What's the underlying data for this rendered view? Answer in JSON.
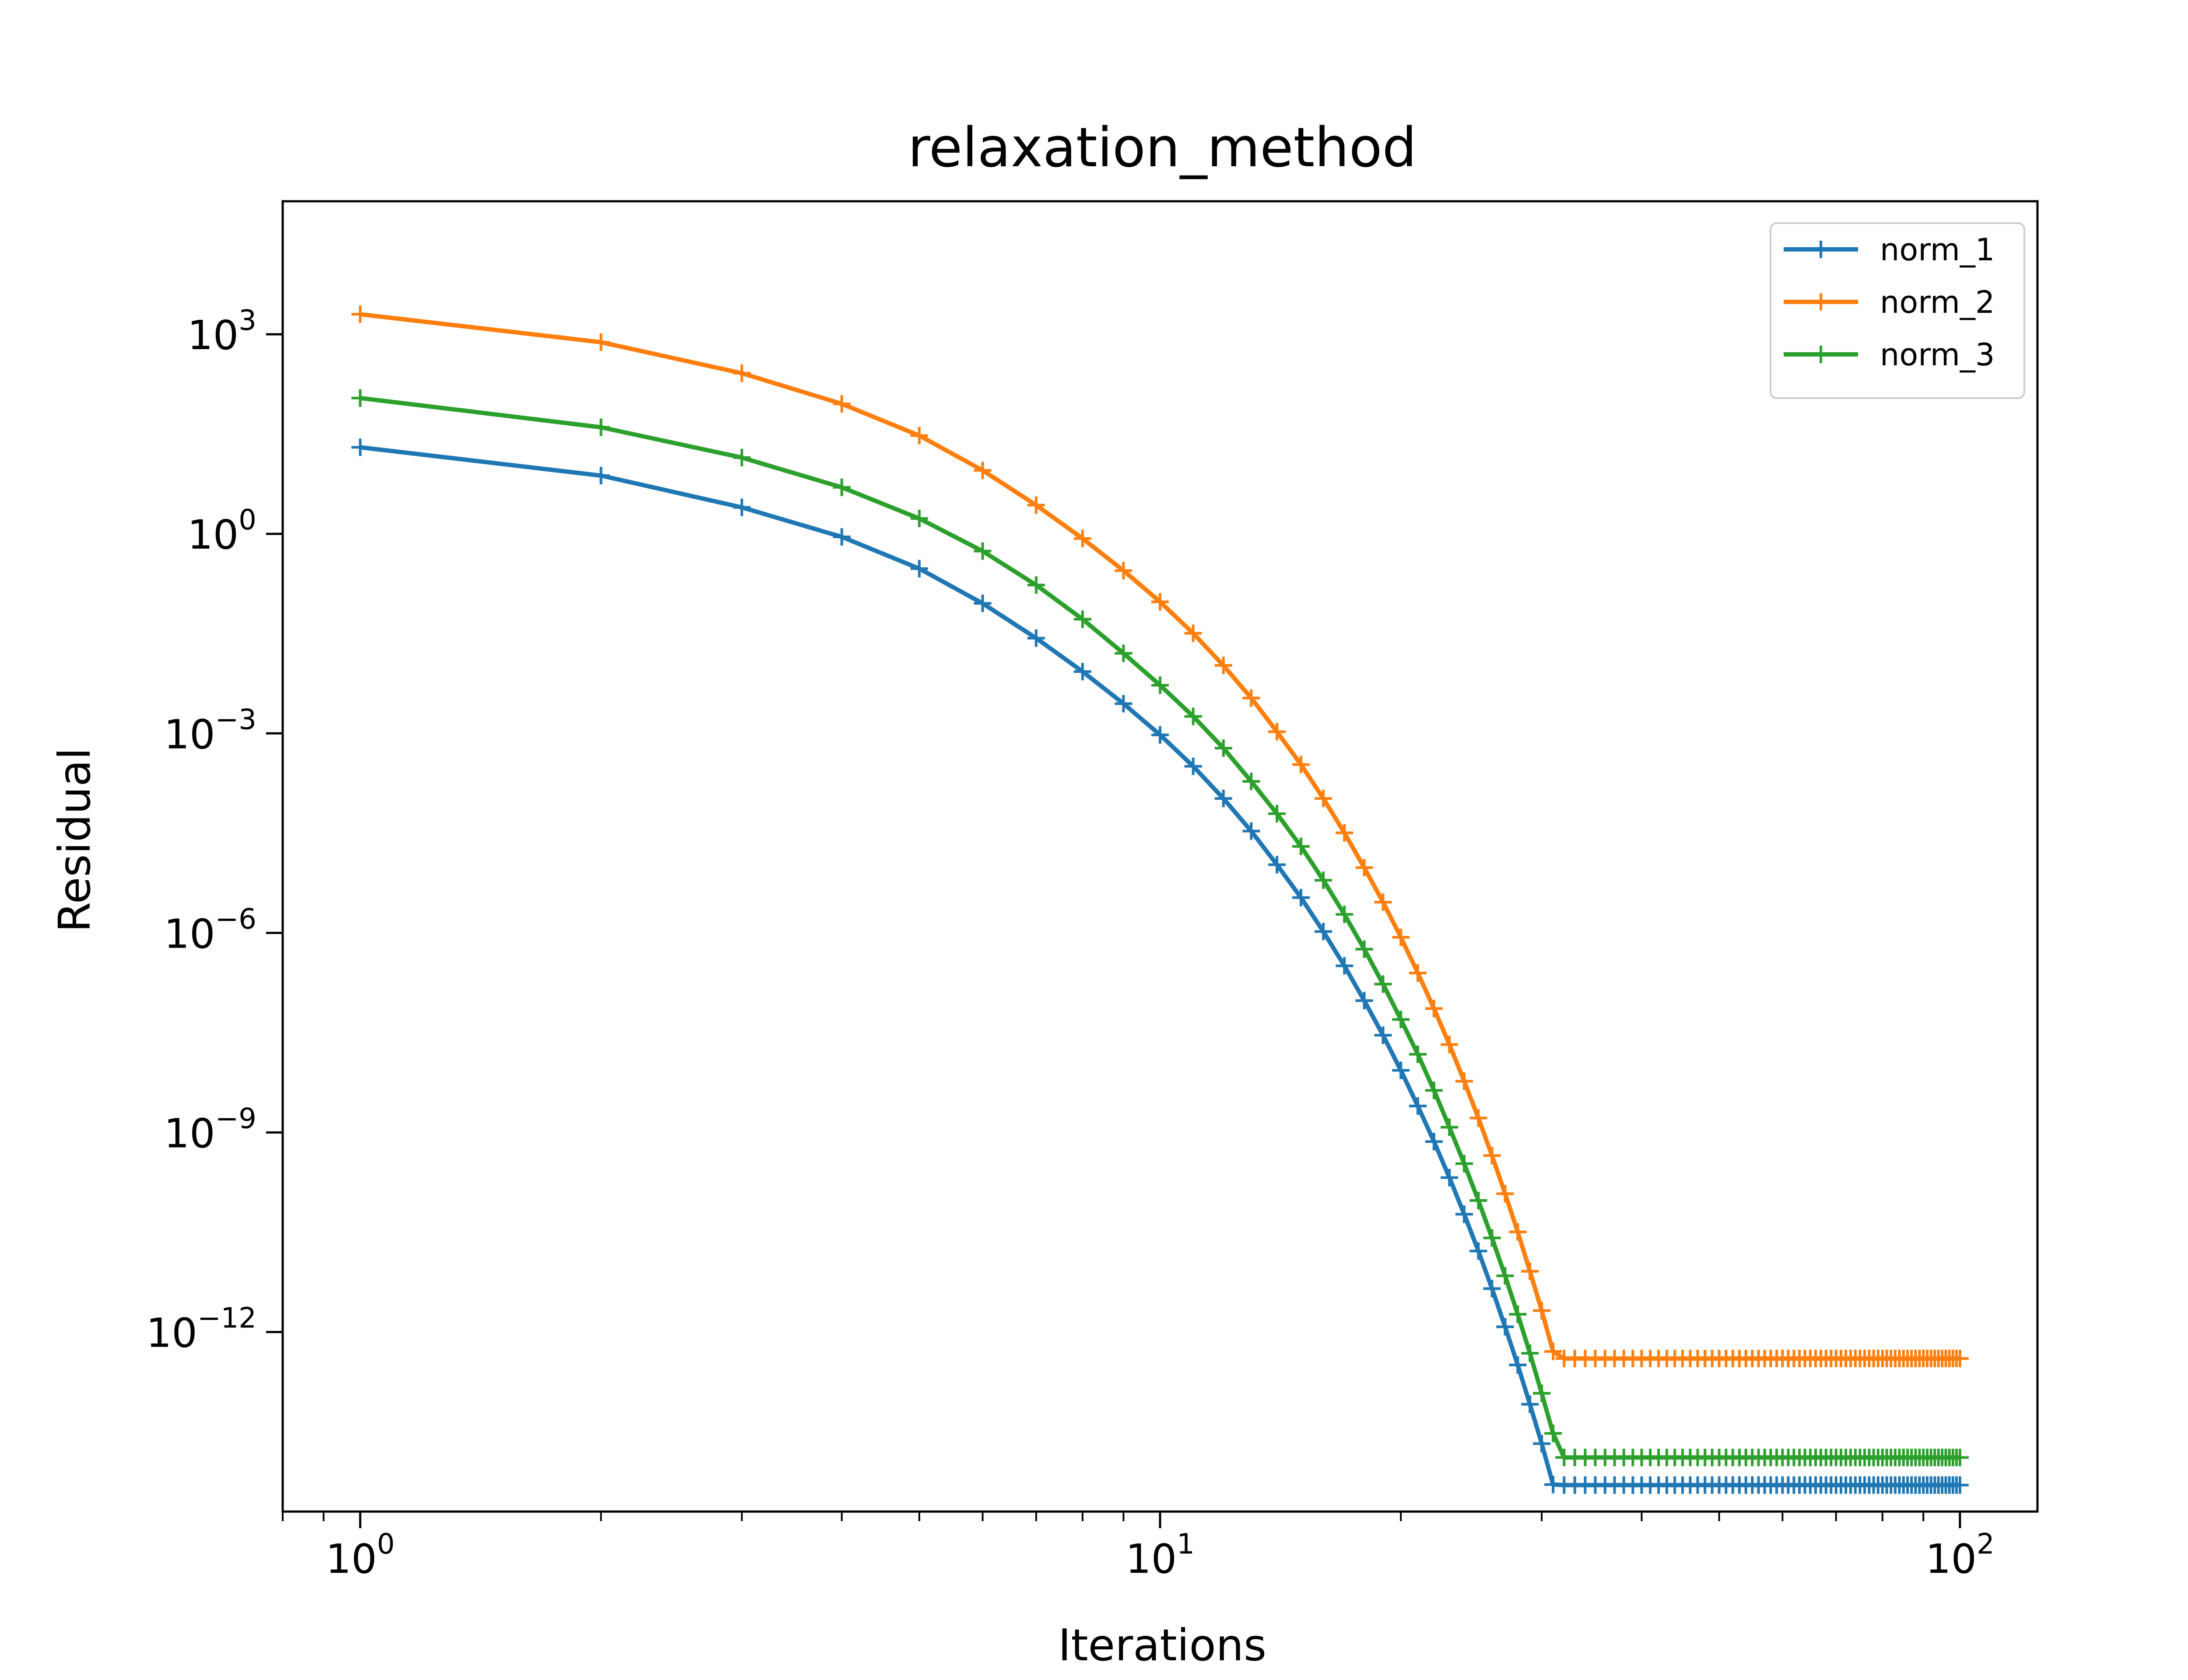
{
  "chart_data": {
    "type": "line",
    "title": "relaxation_method",
    "xlabel": "Iterations",
    "ylabel": "Residual",
    "x_scale": "log",
    "y_scale": "log",
    "xlim": [
      0.8,
      125
    ],
    "ylim": [
      2e-15,
      100000.0
    ],
    "x_ticks": [
      {
        "value": 1,
        "base": "10",
        "exp": "0"
      },
      {
        "value": 10,
        "base": "10",
        "exp": "1"
      },
      {
        "value": 100,
        "base": "10",
        "exp": "2"
      }
    ],
    "y_ticks": [
      {
        "value": 1000.0,
        "base": "10",
        "exp": "3"
      },
      {
        "value": 1,
        "base": "10",
        "exp": "0"
      },
      {
        "value": 0.001,
        "base": "10",
        "exp": "−3"
      },
      {
        "value": 1e-06,
        "base": "10",
        "exp": "−6"
      },
      {
        "value": 1e-09,
        "base": "10",
        "exp": "−9"
      },
      {
        "value": 1e-12,
        "base": "10",
        "exp": "−12"
      }
    ],
    "grid": false,
    "legend_position": "top-right",
    "marker": "+",
    "x": [
      1,
      2,
      3,
      4,
      5,
      6,
      7,
      8,
      9,
      10,
      11,
      12,
      13,
      14,
      15,
      16,
      17,
      18,
      19,
      20,
      21,
      22,
      23,
      24,
      25,
      26,
      27,
      28,
      29,
      30,
      31,
      32,
      33,
      34,
      35,
      36,
      37,
      38,
      39,
      40,
      41,
      42,
      43,
      44,
      45,
      46,
      47,
      48,
      49,
      50,
      51,
      52,
      53,
      54,
      55,
      56,
      57,
      58,
      59,
      60,
      61,
      62,
      63,
      64,
      65,
      66,
      67,
      68,
      69,
      70,
      71,
      72,
      73,
      74,
      75,
      76,
      77,
      78,
      79,
      80,
      81,
      82,
      83,
      84,
      85,
      86,
      87,
      88,
      89,
      90,
      91,
      92,
      93,
      94,
      95,
      96,
      97,
      98,
      99,
      100
    ],
    "series": [
      {
        "name": "norm_1",
        "color": "#1f77b4",
        "values": [
          20,
          7.5,
          2.5,
          0.9,
          0.3,
          0.09,
          0.027,
          0.0085,
          0.0028,
          0.00095,
          0.00032,
          0.000105,
          3.4e-05,
          1.06e-05,
          3.4e-06,
          1.05e-06,
          3.2e-07,
          9.6e-08,
          2.9e-08,
          8.6e-09,
          2.5e-09,
          7.3e-10,
          2.1e-10,
          5.9e-11,
          1.65e-11,
          4.5e-12,
          1.2e-12,
          3.2e-13,
          8.2e-14,
          2.1e-14,
          5.1e-15,
          5e-15,
          5e-15,
          5e-15,
          5e-15,
          5e-15,
          5e-15,
          5e-15,
          5e-15,
          5e-15,
          5e-15,
          5e-15,
          5e-15,
          5e-15,
          5e-15,
          5e-15,
          5e-15,
          5e-15,
          5e-15,
          5e-15,
          5e-15,
          5e-15,
          5e-15,
          5e-15,
          5e-15,
          5e-15,
          5e-15,
          5e-15,
          5e-15,
          5e-15,
          5e-15,
          5e-15,
          5e-15,
          5e-15,
          5e-15,
          5e-15,
          5e-15,
          5e-15,
          5e-15,
          5e-15,
          5e-15,
          5e-15,
          5e-15,
          5e-15,
          5e-15,
          5e-15,
          5e-15,
          5e-15,
          5e-15,
          5e-15,
          5e-15,
          5e-15,
          5e-15,
          5e-15,
          5e-15,
          5e-15,
          5e-15,
          5e-15,
          5e-15,
          5e-15,
          5e-15,
          5e-15,
          5e-15,
          5e-15,
          5e-15,
          5e-15,
          5e-15,
          5e-15,
          5e-15,
          5e-15
        ]
      },
      {
        "name": "norm_2",
        "color": "#ff7f0e",
        "values": [
          2000,
          760,
          260,
          90,
          30,
          9,
          2.7,
          0.85,
          0.28,
          0.095,
          0.032,
          0.0105,
          0.0034,
          0.00106,
          0.00034,
          0.000105,
          3.2e-05,
          9.6e-06,
          2.9e-06,
          8.6e-07,
          2.5e-07,
          7.3e-08,
          2.1e-08,
          5.9e-09,
          1.65e-09,
          4.5e-10,
          1.2e-10,
          3.2e-11,
          8.2e-12,
          2.1e-12,
          5.1e-13,
          4e-13,
          4e-13,
          4e-13,
          4e-13,
          4e-13,
          4e-13,
          4e-13,
          4e-13,
          4e-13,
          4e-13,
          4e-13,
          4e-13,
          4e-13,
          4e-13,
          4e-13,
          4e-13,
          4e-13,
          4e-13,
          4e-13,
          4e-13,
          4e-13,
          4e-13,
          4e-13,
          4e-13,
          4e-13,
          4e-13,
          4e-13,
          4e-13,
          4e-13,
          4e-13,
          4e-13,
          4e-13,
          4e-13,
          4e-13,
          4e-13,
          4e-13,
          4e-13,
          4e-13,
          4e-13,
          4e-13,
          4e-13,
          4e-13,
          4e-13,
          4e-13,
          4e-13,
          4e-13,
          4e-13,
          4e-13,
          4e-13,
          4e-13,
          4e-13,
          4e-13,
          4e-13,
          4e-13,
          4e-13,
          4e-13,
          4e-13,
          4e-13,
          4e-13,
          4e-13,
          4e-13,
          4e-13,
          4e-13,
          4e-13,
          4e-13,
          4e-13,
          4e-13,
          4e-13,
          4e-13
        ]
      },
      {
        "name": "norm_3",
        "color": "#2ca02c",
        "values": [
          110,
          40,
          14,
          5,
          1.7,
          0.55,
          0.17,
          0.052,
          0.016,
          0.0053,
          0.0018,
          0.0006,
          0.00019,
          6.2e-05,
          2e-05,
          6.2e-06,
          1.9e-06,
          5.7e-07,
          1.7e-07,
          5e-08,
          1.5e-08,
          4.3e-09,
          1.2e-09,
          3.4e-10,
          9.5e-11,
          2.6e-11,
          7e-12,
          1.85e-12,
          4.8e-13,
          1.2e-13,
          3e-14,
          1.3e-14,
          1.3e-14,
          1.3e-14,
          1.3e-14,
          1.3e-14,
          1.3e-14,
          1.3e-14,
          1.3e-14,
          1.3e-14,
          1.3e-14,
          1.3e-14,
          1.3e-14,
          1.3e-14,
          1.3e-14,
          1.3e-14,
          1.3e-14,
          1.3e-14,
          1.3e-14,
          1.3e-14,
          1.3e-14,
          1.3e-14,
          1.3e-14,
          1.3e-14,
          1.3e-14,
          1.3e-14,
          1.3e-14,
          1.3e-14,
          1.3e-14,
          1.3e-14,
          1.3e-14,
          1.3e-14,
          1.3e-14,
          1.3e-14,
          1.3e-14,
          1.3e-14,
          1.3e-14,
          1.3e-14,
          1.3e-14,
          1.3e-14,
          1.3e-14,
          1.3e-14,
          1.3e-14,
          1.3e-14,
          1.3e-14,
          1.3e-14,
          1.3e-14,
          1.3e-14,
          1.3e-14,
          1.3e-14,
          1.3e-14,
          1.3e-14,
          1.3e-14,
          1.3e-14,
          1.3e-14,
          1.3e-14,
          1.3e-14,
          1.3e-14,
          1.3e-14,
          1.3e-14,
          1.3e-14,
          1.3e-14,
          1.3e-14,
          1.3e-14,
          1.3e-14,
          1.3e-14,
          1.3e-14,
          1.3e-14,
          1.3e-14,
          1.3e-14
        ]
      }
    ]
  }
}
